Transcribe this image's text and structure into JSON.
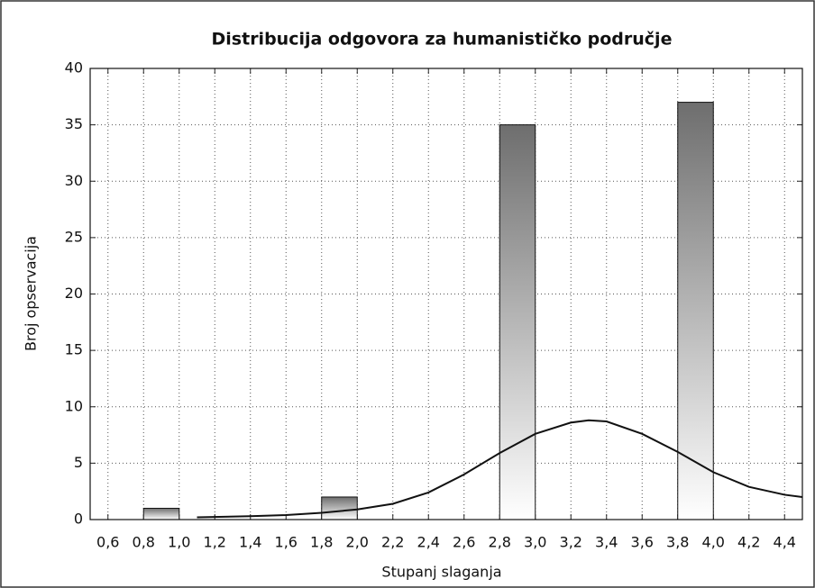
{
  "chart_data": {
    "type": "histogram",
    "title": "Distribucija odgovora za humanističko područje",
    "x_label": "Stupanj slaganja",
    "y_label": "Broj opservacija",
    "bins": [
      0.8,
      1.0,
      1.2,
      1.4,
      1.6,
      1.8,
      2.0,
      2.2,
      2.4,
      2.6,
      2.8,
      3.0,
      3.2,
      3.4,
      3.6,
      3.8,
      4.0
    ],
    "counts": [
      1,
      0,
      0,
      0,
      0,
      2,
      0,
      0,
      0,
      0,
      35,
      0,
      0,
      0,
      0,
      37
    ],
    "curve": {
      "x": [
        1.1,
        1.4,
        1.6,
        1.8,
        2.0,
        2.2,
        2.4,
        2.6,
        2.8,
        3.0,
        3.2,
        3.3,
        3.4,
        3.6,
        3.8,
        4.0,
        4.2,
        4.4,
        4.5
      ],
      "values": [
        0.2,
        0.3,
        0.4,
        0.6,
        0.9,
        1.4,
        2.4,
        4.0,
        5.9,
        7.6,
        8.6,
        8.8,
        8.7,
        7.6,
        6.0,
        4.2,
        2.9,
        2.2,
        2.0
      ],
      "color": "#111111"
    },
    "bar_color": "#6e6e6e",
    "xlim": [
      0.5,
      4.5
    ],
    "ylim": [
      0,
      40
    ],
    "xticks": [
      {
        "value": 0.6,
        "label": "0,6"
      },
      {
        "value": 0.8,
        "label": "0,8"
      },
      {
        "value": 1.0,
        "label": "1,0"
      },
      {
        "value": 1.2,
        "label": "1,2"
      },
      {
        "value": 1.4,
        "label": "1,4"
      },
      {
        "value": 1.6,
        "label": "1,6"
      },
      {
        "value": 1.8,
        "label": "1,8"
      },
      {
        "value": 2.0,
        "label": "2,0"
      },
      {
        "value": 2.2,
        "label": "2,2"
      },
      {
        "value": 2.4,
        "label": "2,4"
      },
      {
        "value": 2.6,
        "label": "2,6"
      },
      {
        "value": 2.8,
        "label": "2,8"
      },
      {
        "value": 3.0,
        "label": "3,0"
      },
      {
        "value": 3.2,
        "label": "3,2"
      },
      {
        "value": 3.4,
        "label": "3,4"
      },
      {
        "value": 3.6,
        "label": "3,6"
      },
      {
        "value": 3.8,
        "label": "3,8"
      },
      {
        "value": 4.0,
        "label": "4,0"
      },
      {
        "value": 4.2,
        "label": "4,2"
      },
      {
        "value": 4.4,
        "label": "4,4"
      }
    ],
    "yticks": [
      0,
      5,
      10,
      15,
      20,
      25,
      30,
      35,
      40
    ],
    "grid": true
  }
}
